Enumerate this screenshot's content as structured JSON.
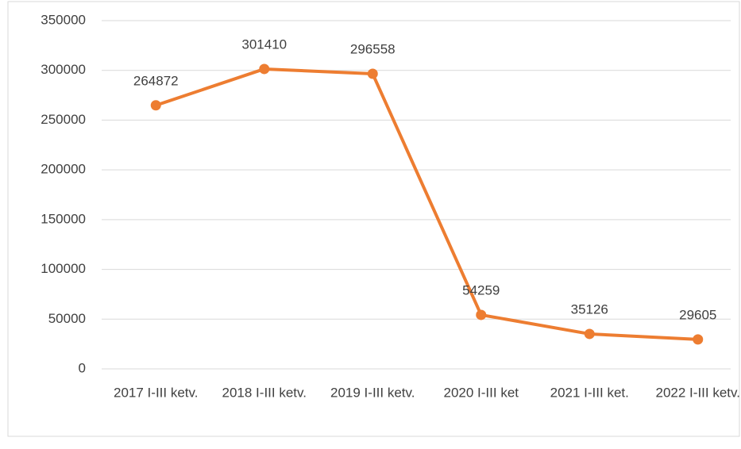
{
  "chart_data": {
    "type": "line",
    "categories": [
      "2017 I-III ketv.",
      "2018 I-III ketv.",
      "2019 I-III ketv.",
      "2020 I-III ket",
      "2021 I-III ket.",
      "2022 I-III ketv."
    ],
    "series": [
      {
        "color": "#ed7d31",
        "values": [
          264872,
          301410,
          296558,
          54259,
          35126,
          29605
        ]
      }
    ],
    "ylim": [
      0,
      350000
    ],
    "yticks": [
      0,
      50000,
      100000,
      150000,
      200000,
      250000,
      300000,
      350000
    ],
    "grid": true
  }
}
